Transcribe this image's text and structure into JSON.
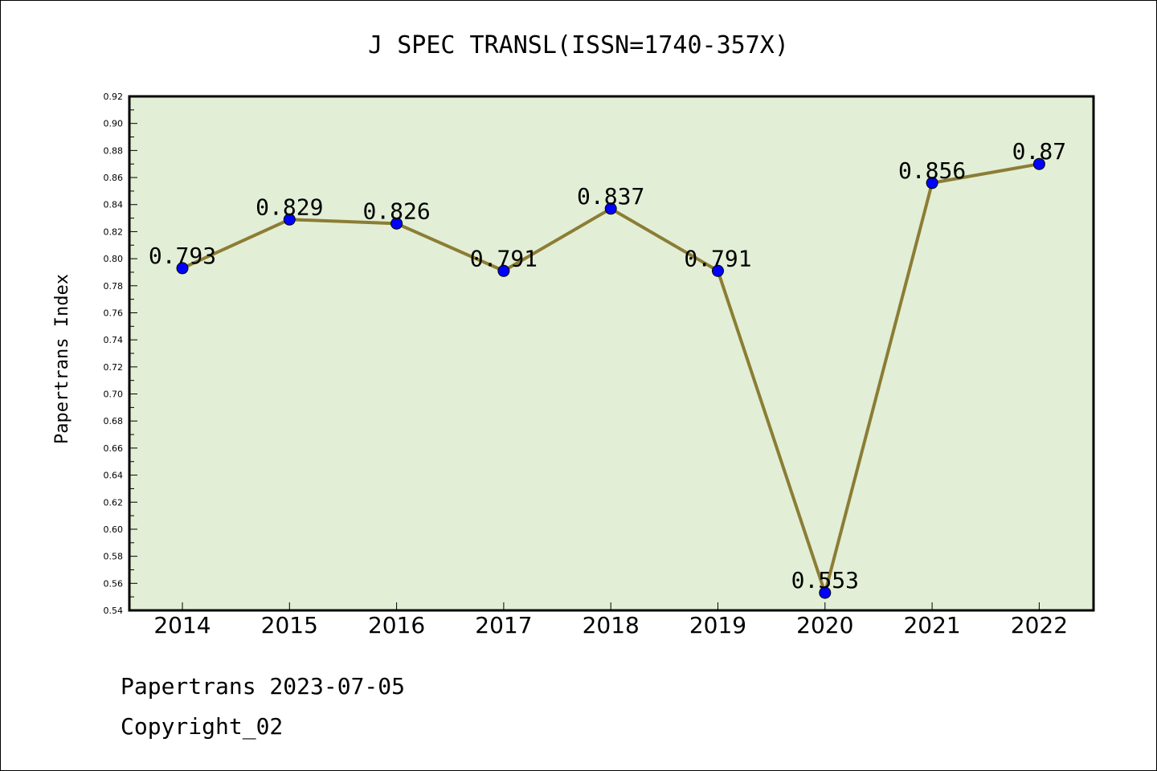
{
  "chart_data": {
    "type": "line",
    "title": "J SPEC TRANSL(ISSN=1740-357X)",
    "ylabel": "Papertrans Index",
    "xlabel": "",
    "categories": [
      "2014",
      "2015",
      "2016",
      "2017",
      "2018",
      "2019",
      "2020",
      "2021",
      "2022"
    ],
    "series": [
      {
        "values": [
          0.793,
          0.829,
          0.826,
          0.791,
          0.837,
          0.791,
          0.553,
          0.856,
          0.87
        ]
      }
    ],
    "data_labels": [
      "0.793",
      "0.829",
      "0.826",
      "0.791",
      "0.837",
      "0.791",
      "0.553",
      "0.856",
      "0.87"
    ],
    "ylim": [
      0.54,
      0.92
    ],
    "yticks": [
      "0.54",
      "0.56",
      "0.58",
      "0.60",
      "0.62",
      "0.64",
      "0.66",
      "0.68",
      "0.70",
      "0.72",
      "0.74",
      "0.76",
      "0.78",
      "0.80",
      "0.82",
      "0.84",
      "0.86",
      "0.88",
      "0.90",
      "0.92"
    ],
    "grid": false,
    "colors": {
      "plot_background": "#e2efd6",
      "line": "#8c7d35",
      "marker": "#0000ff"
    }
  },
  "footer": {
    "line1": "Papertrans 2023-07-05",
    "line2": "Copyright_02"
  }
}
